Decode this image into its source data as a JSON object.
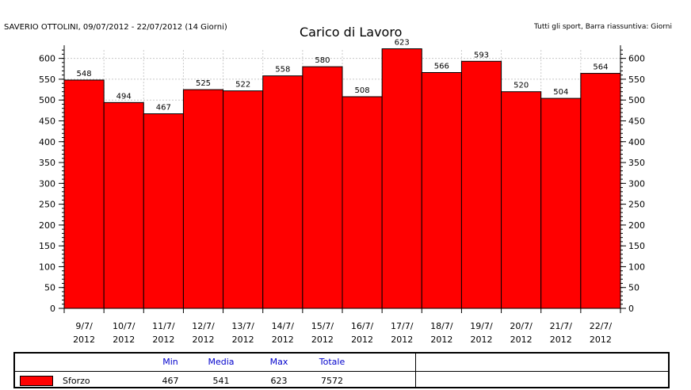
{
  "header": {
    "left_text": "SAVERIO OTTOLINI, 09/07/2012 - 22/07/2012 (14 Giorni)",
    "right_text": "Tutti gli sport, Barra riassuntiva: Giorni"
  },
  "colors": {
    "bar": "#ff0000",
    "bar_stroke": "#000000",
    "axis": "#000000",
    "grid": "#c8c8c8"
  },
  "chart_data": {
    "type": "bar",
    "title": "Carico di Lavoro",
    "categories": [
      "9/7/\n2012",
      "10/7/\n2012",
      "11/7/\n2012",
      "12/7/\n2012",
      "13/7/\n2012",
      "14/7/\n2012",
      "15/7/\n2012",
      "16/7/\n2012",
      "17/7/\n2012",
      "18/7/\n2012",
      "19/7/\n2012",
      "20/7/\n2012",
      "21/7/\n2012",
      "22/7/\n2012"
    ],
    "series": [
      {
        "name": "Sforzo",
        "values": [
          548,
          494,
          467,
          525,
          522,
          558,
          580,
          508,
          623,
          566,
          593,
          520,
          504,
          564
        ]
      }
    ],
    "ylim": [
      0,
      620
    ],
    "yticks": [
      0,
      50,
      100,
      150,
      200,
      250,
      300,
      350,
      400,
      450,
      500,
      550,
      600
    ],
    "grid": true,
    "xlabel": "",
    "ylabel": ""
  },
  "summary": {
    "headers": {
      "min": "Min",
      "mean": "Media",
      "max": "Max",
      "total": "Totale"
    },
    "row": {
      "name": "Sforzo",
      "min": "467",
      "mean": "541",
      "max": "623",
      "total": "7572"
    }
  }
}
